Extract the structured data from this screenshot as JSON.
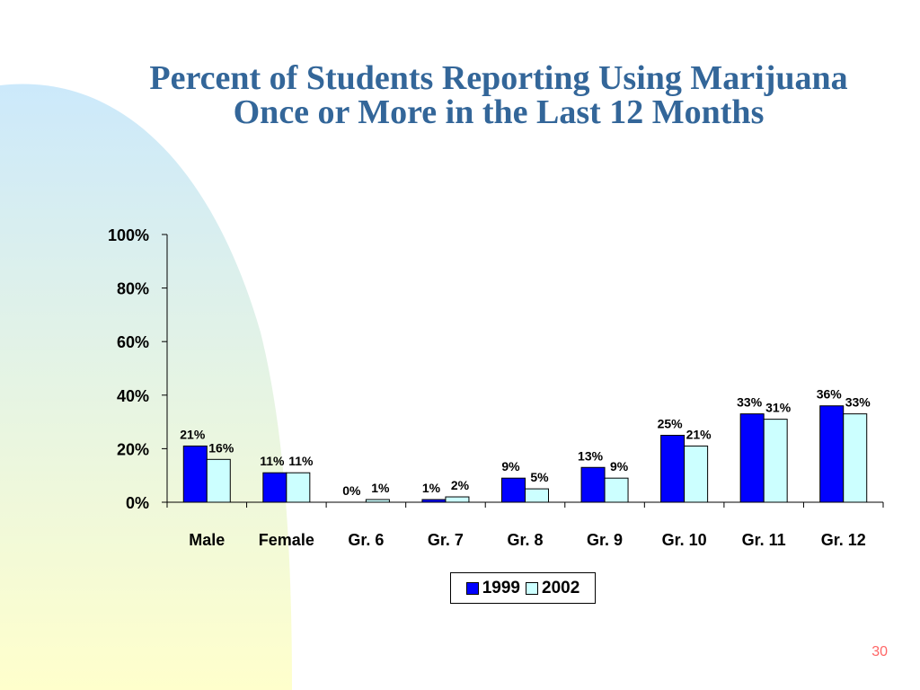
{
  "title": "Percent of Students Reporting Using Marijuana Once or More in the Last 12 Months",
  "page_number": "30",
  "colors": {
    "series_1999": "#0000ff",
    "series_2002": "#ccffff",
    "title": "#336699",
    "page_number": "#ff6666",
    "background_gradient_top": "#cce9fb",
    "background_gradient_bottom": "#ffffcc"
  },
  "chart_data": {
    "type": "bar",
    "title": "Percent of Students Reporting Using Marijuana Once or More in the Last 12 Months",
    "categories": [
      "Male",
      "Female",
      "Gr. 6",
      "Gr. 7",
      "Gr. 8",
      "Gr. 9",
      "Gr. 10",
      "Gr. 11",
      "Gr. 12"
    ],
    "series": [
      {
        "name": "1999",
        "values": [
          21,
          11,
          0,
          1,
          9,
          13,
          25,
          33,
          36
        ],
        "labels": [
          "21%",
          "11%",
          "0%",
          "1%",
          "9%",
          "13%",
          "25%",
          "33%",
          "36%"
        ]
      },
      {
        "name": "2002",
        "values": [
          16,
          11,
          1,
          2,
          5,
          9,
          21,
          31,
          33
        ],
        "labels": [
          "16%",
          "11%",
          "1%",
          "2%",
          "5%",
          "9%",
          "21%",
          "31%",
          "33%"
        ]
      }
    ],
    "y_ticks": [
      "0%",
      "20%",
      "40%",
      "60%",
      "80%",
      "100%"
    ],
    "y_tick_values": [
      0,
      20,
      40,
      60,
      80,
      100
    ],
    "ylim": [
      0,
      100
    ],
    "xlabel": "",
    "ylabel": "",
    "grid": false,
    "legend": {
      "position": "bottom",
      "entries": [
        "1999",
        "2002"
      ]
    }
  }
}
